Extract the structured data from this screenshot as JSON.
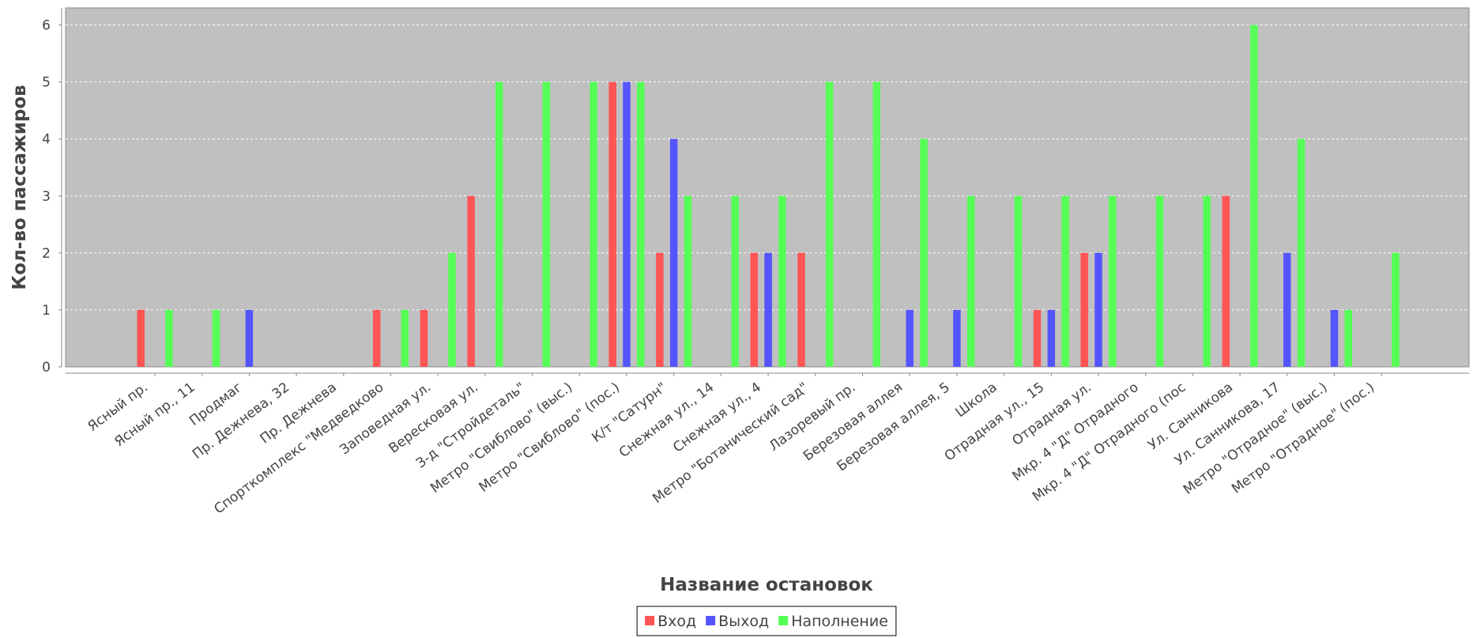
{
  "chart_data": {
    "type": "bar",
    "x_label": "Название остановок",
    "y_label": "Кол-во пассажиров",
    "categories": [
      "Ясный пр.",
      "Ясный пр., 11",
      "Продмаг",
      "Пр. Дежнева, 32",
      "Пр. Дежнева",
      "Спорткомплекс \"Медведково",
      "Заповедная ул.",
      "Вересковая ул.",
      "З-д \"Стройдеталь\"",
      "Метро \"Свиблово\" (выс.)",
      "Метро \"Свиблово\" (пос.)",
      "К/т \"Сатурн\"",
      "Снежная ул., 14",
      "Снежная ул., 4",
      "Метро \"Ботанический сад\"",
      "Лазоревый пр.",
      "Березовая аллея",
      "Березовая аллея, 5",
      "Школа",
      "Отрадная ул., 15",
      "Отрадная ул.",
      "Мкр. 4 \"Д\" Отрадного",
      "Мкр. 4 \"Д\" Отрадного (пос",
      "Ул. Санникова",
      "Ул. Санникова, 17",
      "Метро \"Отрадное\" (выс.)",
      "Метро \"Отрадное\" (пос.)"
    ],
    "series": [
      {
        "name": "Вход",
        "color": "#ff5555",
        "values": [
          1,
          0,
          0,
          0,
          0,
          1,
          1,
          3,
          0,
          0,
          5,
          2,
          0,
          2,
          2,
          0,
          0,
          0,
          0,
          1,
          2,
          0,
          0,
          3,
          0,
          0,
          0
        ]
      },
      {
        "name": "Выход",
        "color": "#5555ff",
        "values": [
          0,
          0,
          1,
          0,
          0,
          0,
          0,
          0,
          0,
          0,
          5,
          4,
          0,
          2,
          0,
          0,
          1,
          1,
          0,
          1,
          2,
          0,
          0,
          0,
          2,
          1,
          0
        ]
      },
      {
        "name": "Наполнение",
        "color": "#55ff55",
        "values": [
          1,
          1,
          0,
          0,
          0,
          1,
          2,
          5,
          5,
          5,
          5,
          3,
          3,
          3,
          5,
          5,
          4,
          3,
          3,
          3,
          3,
          3,
          3,
          6,
          4,
          1,
          2
        ]
      }
    ],
    "ylim": [
      0,
      6.3
    ],
    "yticks": [
      0,
      1,
      2,
      3,
      4,
      5,
      6
    ],
    "grid": true,
    "legend": "bottom"
  }
}
